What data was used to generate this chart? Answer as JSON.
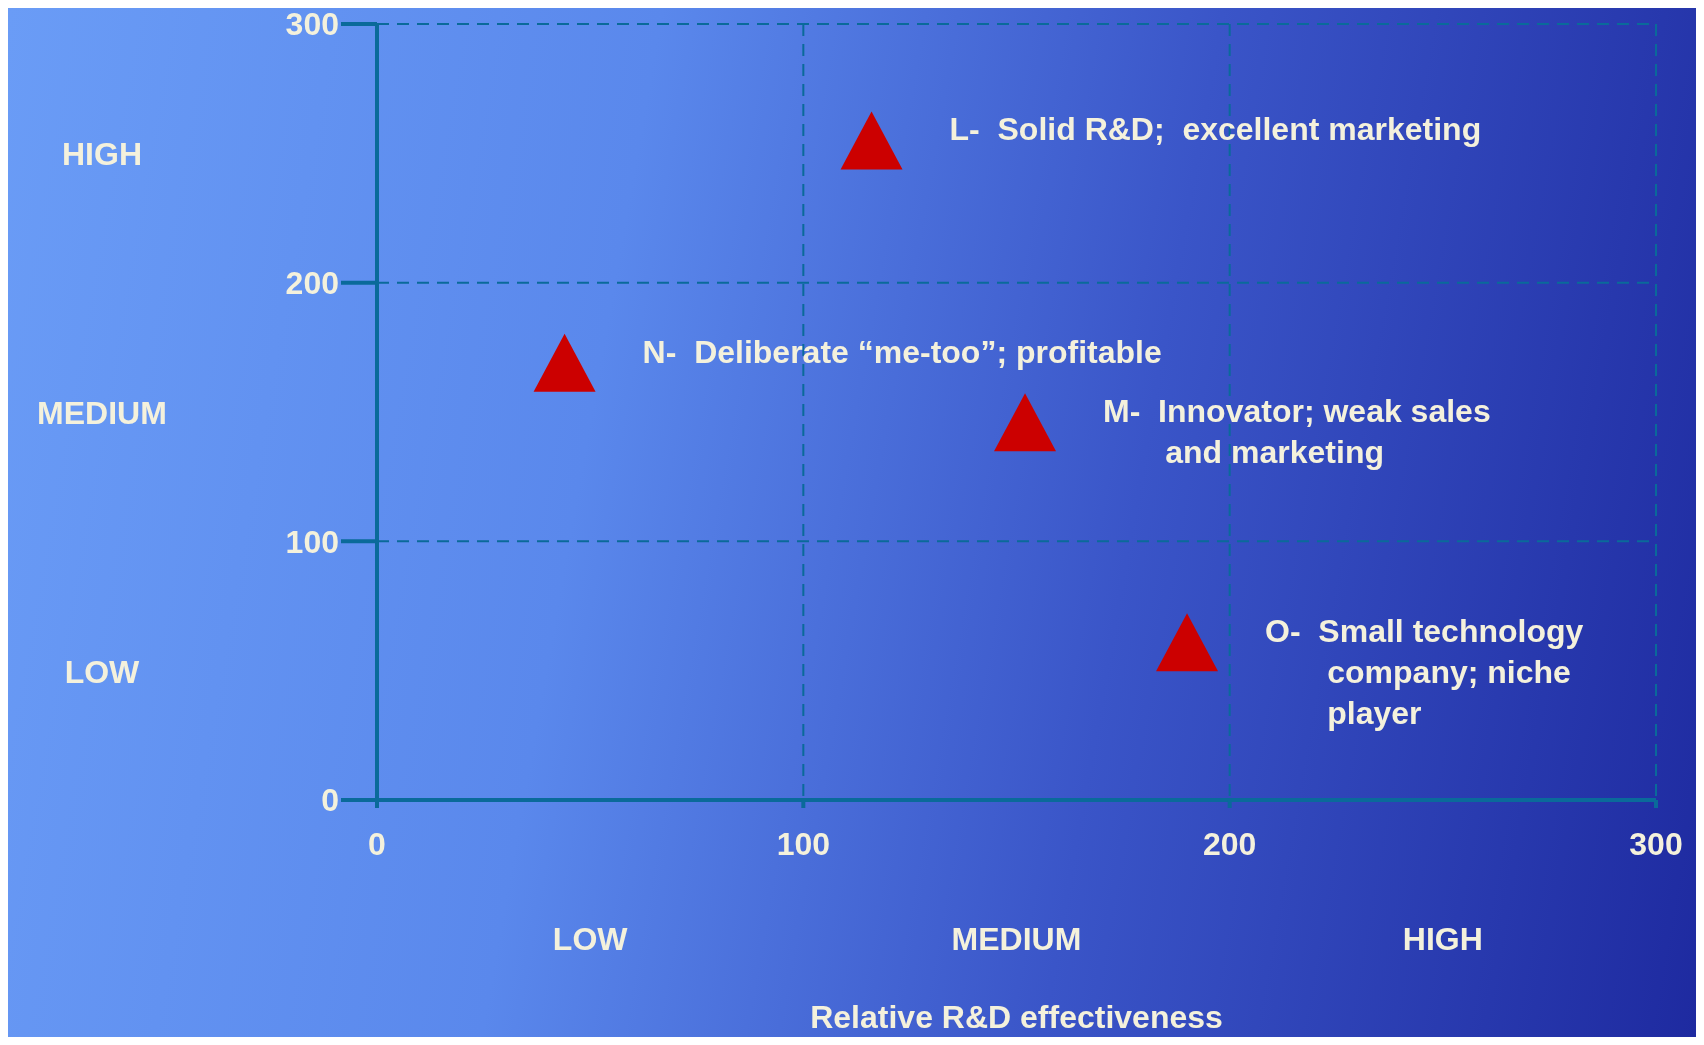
{
  "chart_data": {
    "type": "scatter",
    "xlabel": "Relative R&D effectiveness",
    "x": [
      116,
      44,
      152,
      190
    ],
    "values": [
      255,
      169,
      146,
      61
    ],
    "color": "#cc0000",
    "marker": "triangle",
    "xlim": [
      0,
      300
    ],
    "xticks": [
      0,
      100,
      200,
      300
    ],
    "ylim": [
      0,
      300
    ],
    "yticks": [
      0,
      100,
      200,
      300
    ],
    "grid": true,
    "annotations": [
      {
        "text": "L-  Solid R&D;  excellent marketing",
        "x": 116,
        "y": 255
      },
      {
        "text": "N-  Deliberate “me-too”; profitable",
        "x": 44,
        "y": 169
      },
      {
        "text": "M-  Innovator; weak sales\n       and marketing",
        "x": 152,
        "y": 146
      },
      {
        "text": "O-  Small technology\n       company; niche\n       player",
        "x": 190,
        "y": 61
      },
      "HIGH",
      "MEDIUM",
      "LOW",
      "LOW",
      "MEDIUM",
      "HIGH"
    ]
  }
}
